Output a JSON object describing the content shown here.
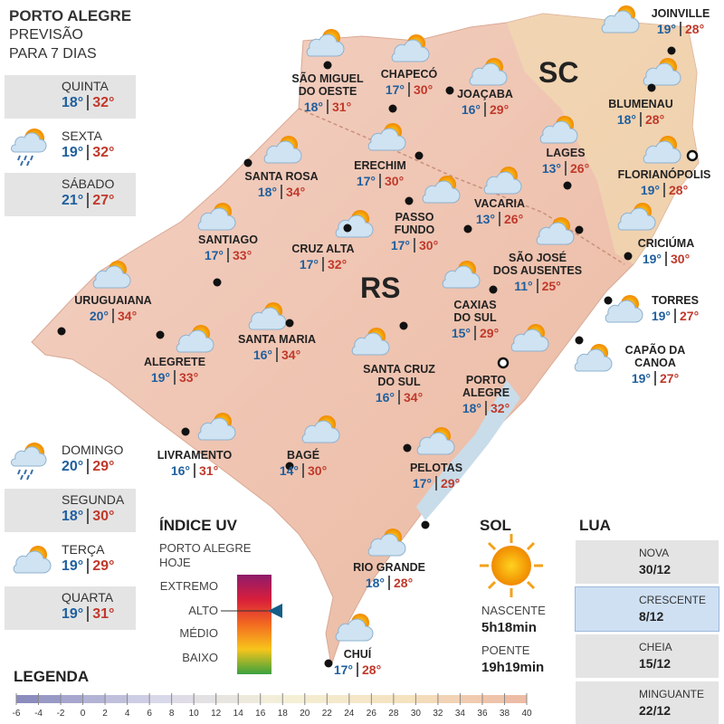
{
  "header": {
    "title": "PORTO ALEGRE",
    "subtitle": [
      "PREVISÃO",
      "PARA 7 DIAS"
    ]
  },
  "forecast": [
    {
      "day": "QUINTA",
      "min": "18°",
      "max": "32°"
    },
    {
      "day": "SEXTA",
      "min": "19°",
      "max": "32°"
    },
    {
      "day": "SÁBADO",
      "min": "21°",
      "max": "27°"
    },
    {
      "day": "DOMINGO",
      "min": "20°",
      "max": "29°"
    },
    {
      "day": "SEGUNDA",
      "min": "18°",
      "max": "30°"
    },
    {
      "day": "TERÇA",
      "min": "19°",
      "max": "29°"
    },
    {
      "day": "QUARTA",
      "min": "19°",
      "max": "31°"
    }
  ],
  "map": {
    "labels": [
      "SC",
      "RS"
    ],
    "cities": [
      {
        "name": [
          "SÃO MIGUEL",
          "DO OESTE"
        ],
        "min": "18°",
        "max": "31°"
      },
      {
        "name": [
          "CHAPECÓ"
        ],
        "min": "17°",
        "max": "30°"
      },
      {
        "name": [
          "JOAÇABA"
        ],
        "min": "16°",
        "max": "29°"
      },
      {
        "name": [
          "JOINVILLE"
        ],
        "min": "19°",
        "max": "28°"
      },
      {
        "name": [
          "BLUMENAU"
        ],
        "min": "18°",
        "max": "28°"
      },
      {
        "name": [
          "LAGES"
        ],
        "min": "13°",
        "max": "26°"
      },
      {
        "name": [
          "FLORIANÓPOLIS"
        ],
        "min": "19°",
        "max": "28°"
      },
      {
        "name": [
          "SANTA ROSA"
        ],
        "min": "18°",
        "max": "34°"
      },
      {
        "name": [
          "ERECHIM"
        ],
        "min": "17°",
        "max": "30°"
      },
      {
        "name": [
          "VACARIA"
        ],
        "min": "13°",
        "max": "26°"
      },
      {
        "name": [
          "SANTIAGO"
        ],
        "min": "17°",
        "max": "33°"
      },
      {
        "name": [
          "CRUZ ALTA"
        ],
        "min": "17°",
        "max": "32°"
      },
      {
        "name": [
          "PASSO",
          "FUNDO"
        ],
        "min": "17°",
        "max": "30°"
      },
      {
        "name": [
          "SÃO JOSÉ",
          "DOS AUSENTES"
        ],
        "min": "11°",
        "max": "25°"
      },
      {
        "name": [
          "CRICIÚMA"
        ],
        "min": "19°",
        "max": "30°"
      },
      {
        "name": [
          "URUGUAIANA"
        ],
        "min": "20°",
        "max": "34°"
      },
      {
        "name": [
          "CAXIAS",
          "DO SUL"
        ],
        "min": "15°",
        "max": "29°"
      },
      {
        "name": [
          "TORRES"
        ],
        "min": "19°",
        "max": "27°"
      },
      {
        "name": [
          "SANTA MARIA"
        ],
        "min": "16°",
        "max": "34°"
      },
      {
        "name": [
          "ALEGRETE"
        ],
        "min": "19°",
        "max": "33°"
      },
      {
        "name": [
          "SANTA CRUZ",
          "DO SUL"
        ],
        "min": "16°",
        "max": "34°"
      },
      {
        "name": [
          "PORTO",
          "ALEGRE"
        ],
        "min": "18°",
        "max": "32°"
      },
      {
        "name": [
          "CAPÃO DA",
          "CANOA"
        ],
        "min": "19°",
        "max": "27°"
      },
      {
        "name": [
          "LIVRAMENTO"
        ],
        "min": "16°",
        "max": "31°"
      },
      {
        "name": [
          "BAGÉ"
        ],
        "min": "14°",
        "max": "30°"
      },
      {
        "name": [
          "PELOTAS"
        ],
        "min": "17°",
        "max": "29°"
      },
      {
        "name": [
          "RIO GRANDE"
        ],
        "min": "18°",
        "max": "28°"
      },
      {
        "name": [
          "CHUÍ"
        ],
        "min": "17°",
        "max": "28°"
      }
    ]
  },
  "uv": {
    "title": "ÍNDICE UV",
    "place": [
      "PORTO ALEGRE",
      "HOJE"
    ],
    "levels": [
      "EXTREMO",
      "ALTO",
      "MÉDIO",
      "BAIXO"
    ],
    "current": "ALTO"
  },
  "sun": {
    "title": "SOL",
    "sunrise": {
      "label": "NASCENTE",
      "time": "5h18min"
    },
    "sunset": {
      "label": "POENTE",
      "time": "19h19min"
    }
  },
  "moon": {
    "title": "LUA",
    "phases": [
      {
        "name": "NOVA",
        "date": "30/12"
      },
      {
        "name": "CRESCENTE",
        "date": "8/12"
      },
      {
        "name": "CHEIA",
        "date": "15/12"
      },
      {
        "name": "MINGUANTE",
        "date": "22/12"
      }
    ],
    "highlight": "CRESCENTE"
  },
  "legend": {
    "title": "LEGENDA",
    "ticks": [
      -6,
      -4,
      -2,
      0,
      2,
      4,
      6,
      8,
      10,
      12,
      14,
      16,
      18,
      20,
      22,
      24,
      26,
      28,
      30,
      32,
      34,
      36,
      38,
      40
    ]
  }
}
